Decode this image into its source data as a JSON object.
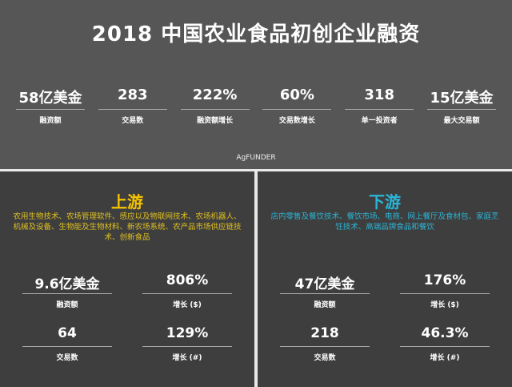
{
  "title": "2018 中国农业食品初创企业融资",
  "stats": [
    {
      "value": "58亿美金",
      "label": "融资额"
    },
    {
      "value": "283",
      "label": "交易数"
    },
    {
      "value": "222%",
      "label": "融资额增长"
    },
    {
      "value": "60%",
      "label": "交易数增长"
    },
    {
      "value": "318",
      "label": "单一投资者"
    },
    {
      "value": "15亿美金",
      "label": "最大交易额"
    }
  ],
  "logo": "AgFUNDER",
  "upstream": {
    "heading": "上游",
    "color": "#f5c400",
    "desc": "农用生物技术、农场管理软件、感应以及物联网技术、农场机器人、机械及设备、生物能及生物材料、新农场系统、农产品市场供应链技术、创新食品",
    "metrics": [
      {
        "value": "9.6亿美金",
        "label": "融资额"
      },
      {
        "value": "806%",
        "label": "增长 ($)"
      },
      {
        "value": "64",
        "label": "交易数"
      },
      {
        "value": "129%",
        "label": "增长 (#)"
      }
    ]
  },
  "downstream": {
    "heading": "下游",
    "color": "#29b6d8",
    "desc": "店内零售及餐饮技术、餐饮市场、电商、网上餐厅及食材包、家庭烹饪技术、高端品牌食品和餐饮",
    "metrics": [
      {
        "value": "47亿美金",
        "label": "融资额"
      },
      {
        "value": "176%",
        "label": "增长 ($)"
      },
      {
        "value": "218",
        "label": "交易数"
      },
      {
        "value": "46.3%",
        "label": "增长 (#)"
      }
    ]
  }
}
